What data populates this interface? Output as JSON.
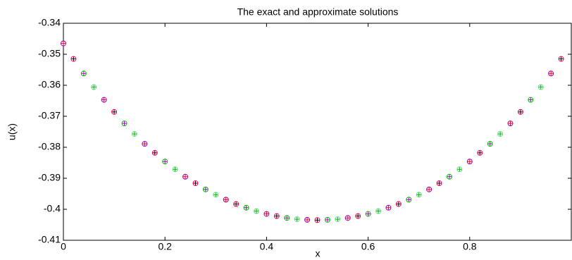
{
  "chart_data": {
    "type": "scatter",
    "title": "The exact and approximate solutions",
    "xlabel": "x",
    "ylabel": "u(x)",
    "x": [
      0,
      0.02,
      0.04,
      0.06,
      0.08,
      0.1,
      0.12,
      0.14,
      0.16,
      0.18,
      0.2,
      0.22,
      0.24,
      0.26,
      0.28,
      0.3,
      0.32,
      0.34,
      0.36,
      0.38,
      0.4,
      0.42,
      0.44,
      0.46,
      0.48,
      0.5,
      0.52,
      0.54,
      0.56,
      0.58,
      0.6,
      0.62,
      0.64,
      0.66,
      0.68,
      0.7,
      0.72,
      0.74,
      0.76,
      0.78,
      0.8,
      0.82,
      0.84,
      0.86,
      0.88,
      0.9,
      0.92,
      0.94,
      0.96,
      0.98
    ],
    "series": [
      {
        "marker": "plus",
        "colors": [
          "#ff0000",
          "#000000",
          "#a000c0",
          "#00b000"
        ],
        "values": [
          -0.3465,
          -0.3515,
          -0.3562,
          -0.3606,
          -0.3647,
          -0.3686,
          -0.3723,
          -0.3757,
          -0.3789,
          -0.3818,
          -0.3846,
          -0.3871,
          -0.3895,
          -0.3916,
          -0.3936,
          -0.3953,
          -0.3969,
          -0.3983,
          -0.3995,
          -0.4006,
          -0.4015,
          -0.4022,
          -0.4028,
          -0.4032,
          -0.4034,
          -0.4035,
          -0.4034,
          -0.4032,
          -0.4028,
          -0.4022,
          -0.4015,
          -0.4006,
          -0.3995,
          -0.3983,
          -0.3969,
          -0.3953,
          -0.3936,
          -0.3916,
          -0.3895,
          -0.3871,
          -0.3846,
          -0.3818,
          -0.3789,
          -0.3757,
          -0.3723,
          -0.3686,
          -0.3647,
          -0.3606,
          -0.3562,
          -0.3515
        ]
      },
      {
        "marker": "circle",
        "colors": [
          "#a000c0",
          "#ff0060",
          "#00c000",
          "#60e080"
        ],
        "values": [
          -0.3465,
          -0.3515,
          -0.3562,
          -0.3606,
          -0.3647,
          -0.3686,
          -0.3723,
          -0.3757,
          -0.3789,
          -0.3818,
          -0.3846,
          -0.3871,
          -0.3895,
          -0.3916,
          -0.3936,
          -0.3953,
          -0.3969,
          -0.3983,
          -0.3995,
          -0.4006,
          -0.4015,
          -0.4022,
          -0.4028,
          -0.4032,
          -0.4034,
          -0.4035,
          -0.4034,
          -0.4032,
          -0.4028,
          -0.4022,
          -0.4015,
          -0.4006,
          -0.3995,
          -0.3983,
          -0.3969,
          -0.3953,
          -0.3936,
          -0.3916,
          -0.3895,
          -0.3871,
          -0.3846,
          -0.3818,
          -0.3789,
          -0.3757,
          -0.3723,
          -0.3686,
          -0.3647,
          -0.3606,
          -0.3562,
          -0.3515
        ]
      }
    ],
    "xlim": [
      0,
      1
    ],
    "xticks": [
      0,
      0.2,
      0.4,
      0.6,
      0.8
    ],
    "ylim": [
      -0.41,
      -0.34
    ],
    "yticks": [
      -0.41,
      -0.4,
      -0.39,
      -0.38,
      -0.37,
      -0.36,
      -0.35,
      -0.34
    ],
    "grid": false
  }
}
